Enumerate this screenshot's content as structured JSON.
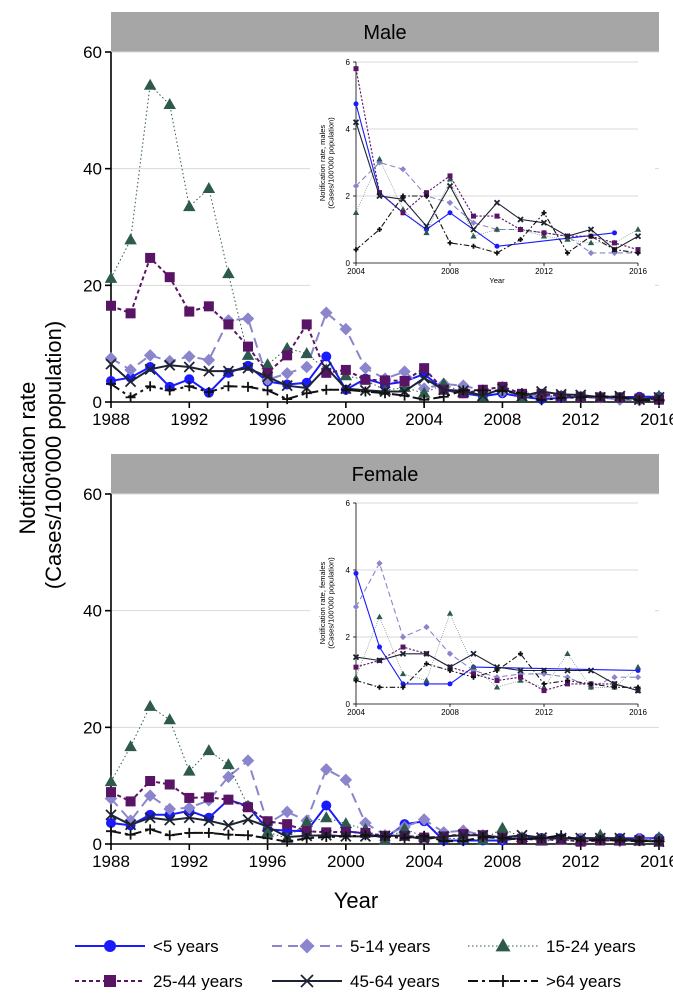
{
  "figure": {
    "ylabel_line1": "Notification rate",
    "ylabel_line2": "(Cases/100'000 population)",
    "xlabel": "Year"
  },
  "legend": [
    {
      "label": "<5 years",
      "series": "s1"
    },
    {
      "label": "5-14 years",
      "series": "s2"
    },
    {
      "label": "15-24 years",
      "series": "s3"
    },
    {
      "label": "25-44 years",
      "series": "s4"
    },
    {
      "label": "45-64 years",
      "series": "s5"
    },
    {
      "label": ">64 years",
      "series": "s6"
    }
  ],
  "colors": {
    "s1": "#1a1aff",
    "s2": "#8a85cc",
    "s3": "#2e5a4e",
    "s4": "#5a1466",
    "s5": "#1e2333",
    "s6": "#111111",
    "panel_header": "#a6a6a6",
    "grid": "#d9d9d9"
  },
  "chart_data": [
    {
      "type": "line",
      "title": "Male",
      "xlabel": "",
      "ylabel": "Notification rate\n(Cases/100'000 population)",
      "xlim": [
        1988,
        2016
      ],
      "ylim": [
        0,
        60
      ],
      "xticks": [
        1988,
        1992,
        1996,
        2000,
        2004,
        2008,
        2012,
        2016
      ],
      "yticks": [
        0,
        20,
        40,
        60
      ],
      "x": [
        1988,
        1989,
        1990,
        1991,
        1992,
        1993,
        1994,
        1995,
        1996,
        1997,
        1998,
        1999,
        2000,
        2001,
        2002,
        2003,
        2004,
        2005,
        2006,
        2007,
        2008,
        2009,
        2010,
        2011,
        2012,
        2013,
        2014,
        2015,
        2016
      ],
      "series": [
        {
          "name": "<5 years",
          "key": "s1",
          "values": [
            3.6,
            4.2,
            6.0,
            2.6,
            3.9,
            1.6,
            5.0,
            6.2,
            3.5,
            3.0,
            3.3,
            7.8,
            2.1,
            4.0,
            3.0,
            3.5,
            4.8,
            2.1,
            1.5,
            1.0,
            1.5,
            0.9,
            0.5,
            0.7,
            0.9,
            0.7,
            0.8,
            0.9,
            0.9
          ]
        },
        {
          "name": "5-14 years",
          "key": "s2",
          "values": [
            7.5,
            5.5,
            8.0,
            7.0,
            7.8,
            7.2,
            14.0,
            14.3,
            3.8,
            4.9,
            6.0,
            15.3,
            12.5,
            5.8,
            4.0,
            5.2,
            2.3,
            3.1,
            2.8,
            2.0,
            1.8,
            1.2,
            1.0,
            1.0,
            0.9,
            0.8,
            0.4,
            0.3,
            0.3
          ]
        },
        {
          "name": "15-24 years",
          "key": "s3",
          "values": [
            21.2,
            27.8,
            54.3,
            51.0,
            33.5,
            36.6,
            22.0,
            8.0,
            6.4,
            9.2,
            8.3,
            5.5,
            4.5,
            3.8,
            2.0,
            2.5,
            1.5,
            3.1,
            1.6,
            0.9,
            2.5,
            0.8,
            1.0,
            1.0,
            0.8,
            0.7,
            0.6,
            0.6,
            1.0
          ]
        },
        {
          "name": "25-44 years",
          "key": "s4",
          "values": [
            16.5,
            15.2,
            24.7,
            21.4,
            15.5,
            16.4,
            13.3,
            9.5,
            5.0,
            8.0,
            13.3,
            5.0,
            5.5,
            3.8,
            3.7,
            3.6,
            5.8,
            2.1,
            1.5,
            2.1,
            2.6,
            1.4,
            1.4,
            1.0,
            0.9,
            0.8,
            0.8,
            0.6,
            0.4
          ]
        },
        {
          "name": "45-64 years",
          "key": "s5",
          "values": [
            6.5,
            3.5,
            5.6,
            6.3,
            6.0,
            5.3,
            5.3,
            5.8,
            4.3,
            2.8,
            2.4,
            5.9,
            2.3,
            2.0,
            1.8,
            1.8,
            4.1,
            2.1,
            1.9,
            1.1,
            2.3,
            1.0,
            1.8,
            1.3,
            1.2,
            0.8,
            1.0,
            0.4,
            0.8
          ]
        },
        {
          "name": ">64 years",
          "key": "s6",
          "values": [
            3.1,
            0.8,
            2.7,
            2.0,
            2.7,
            1.7,
            2.7,
            2.6,
            2.0,
            0.5,
            1.5,
            2.1,
            2.1,
            1.8,
            1.5,
            1.1,
            0.4,
            0.9,
            2.0,
            2.0,
            1.9,
            1.5,
            0.3,
            0.7,
            0.8,
            1.0,
            0.8,
            0.3,
            0.3
          ]
        }
      ]
    },
    {
      "type": "line",
      "title": "",
      "xlabel": "Year",
      "ylabel": "Notification rate, males\n(Cases/100'000 population)",
      "xlim": [
        2004,
        2016
      ],
      "ylim": [
        0,
        6
      ],
      "xticks": [
        2004,
        2008,
        2012,
        2016
      ],
      "yticks": [
        0,
        2,
        4,
        6
      ],
      "x": [
        2004,
        2005,
        2006,
        2007,
        2008,
        2009,
        2010,
        2011,
        2012,
        2013,
        2014,
        2015,
        2016
      ],
      "series": [
        {
          "name": "<5 years",
          "key": "s1",
          "values": [
            4.75,
            2.1,
            1.5,
            1.0,
            1.5,
            null,
            0.5,
            null,
            null,
            null,
            null,
            0.9,
            null
          ]
        },
        {
          "name": "5-14 years",
          "key": "s2",
          "values": [
            2.3,
            3.0,
            2.8,
            2.0,
            1.8,
            1.2,
            1.0,
            1.0,
            0.9,
            0.8,
            0.3,
            0.3,
            0.3
          ]
        },
        {
          "name": "15-24 years",
          "key": "s3",
          "values": [
            1.5,
            3.1,
            1.6,
            0.9,
            2.5,
            0.8,
            1.0,
            1.0,
            0.8,
            0.7,
            0.6,
            0.6,
            1.0
          ]
        },
        {
          "name": "25-44 years",
          "key": "s4",
          "values": [
            5.8,
            2.1,
            1.5,
            2.1,
            2.6,
            1.4,
            1.4,
            1.0,
            0.9,
            0.8,
            0.8,
            0.6,
            0.4
          ]
        },
        {
          "name": "45-64 years",
          "key": "s5",
          "values": [
            4.2,
            2.0,
            1.9,
            1.1,
            2.3,
            1.0,
            1.8,
            1.3,
            1.2,
            0.8,
            1.0,
            0.4,
            0.8
          ]
        },
        {
          "name": ">64 years",
          "key": "s6",
          "values": [
            0.4,
            1.0,
            2.0,
            2.0,
            0.6,
            0.5,
            0.3,
            0.7,
            1.5,
            0.3,
            0.8,
            0.4,
            0.3
          ]
        }
      ]
    },
    {
      "type": "line",
      "title": "Female",
      "xlabel": "Year",
      "ylabel": "Notification rate\n(Cases/100'000 population)",
      "xlim": [
        1988,
        2016
      ],
      "ylim": [
        0,
        60
      ],
      "xticks": [
        1988,
        1992,
        1996,
        2000,
        2004,
        2008,
        2012,
        2016
      ],
      "yticks": [
        0,
        20,
        40,
        60
      ],
      "x": [
        1988,
        1989,
        1990,
        1991,
        1992,
        1993,
        1994,
        1995,
        1996,
        1997,
        1998,
        1999,
        2000,
        2001,
        2002,
        2003,
        2004,
        2005,
        2006,
        2007,
        2008,
        2009,
        2010,
        2011,
        2012,
        2013,
        2014,
        2015,
        2016
      ],
      "series": [
        {
          "name": "<5 years",
          "key": "s1",
          "values": [
            3.6,
            3.2,
            5.0,
            5.0,
            5.7,
            4.5,
            7.6,
            6.5,
            2.5,
            2.3,
            2.2,
            6.6,
            2.2,
            1.8,
            1.0,
            3.4,
            3.9,
            0.6,
            0.6,
            0.6,
            0.6,
            1.1,
            1.0,
            1.0,
            1.0,
            1.0,
            1.0,
            1.0,
            1.0
          ]
        },
        {
          "name": "5-14 years",
          "key": "s2",
          "values": [
            7.8,
            4.0,
            8.3,
            6.0,
            6.2,
            7.5,
            11.5,
            14.3,
            3.5,
            5.5,
            4.0,
            12.8,
            11.0,
            3.6,
            1.5,
            2.9,
            4.2,
            2.0,
            2.3,
            1.5,
            1.0,
            1.0,
            0.8,
            0.9,
            0.9,
            0.8,
            0.5,
            0.8,
            0.8
          ]
        },
        {
          "name": "15-24 years",
          "key": "s3",
          "values": [
            10.7,
            16.7,
            23.6,
            21.3,
            12.5,
            16.0,
            13.6,
            6.5,
            2.0,
            1.0,
            3.7,
            4.5,
            3.5,
            2.5,
            0.7,
            2.6,
            1.2,
            1.0,
            0.9,
            0.7,
            2.7,
            1.1,
            0.5,
            0.7,
            0.5,
            1.5,
            0.5,
            0.5,
            1.1
          ]
        },
        {
          "name": "25-44 years",
          "key": "s4",
          "values": [
            8.9,
            7.3,
            10.8,
            10.2,
            7.9,
            8.0,
            7.6,
            6.3,
            3.9,
            3.4,
            2.2,
            2.0,
            2.1,
            1.9,
            1.4,
            1.4,
            1.1,
            1.3,
            1.7,
            1.5,
            1.1,
            0.9,
            0.7,
            0.8,
            0.4,
            0.6,
            0.6,
            0.6,
            0.4
          ]
        },
        {
          "name": "45-64 years",
          "key": "s5",
          "values": [
            5.0,
            3.3,
            4.5,
            4.1,
            4.5,
            4.0,
            3.2,
            4.2,
            3.0,
            1.2,
            1.4,
            1.5,
            1.3,
            1.3,
            1.4,
            1.4,
            0.8,
            1.3,
            1.5,
            1.5,
            1.1,
            1.5,
            1.1,
            1.0,
            1.0,
            1.0,
            1.0,
            0.6,
            0.4
          ]
        },
        {
          "name": ">64 years",
          "key": "s6",
          "values": [
            2.2,
            1.6,
            2.5,
            1.5,
            1.9,
            1.9,
            1.6,
            1.5,
            1.0,
            0.4,
            1.0,
            1.2,
            1.3,
            1.5,
            1.3,
            1.0,
            1.4,
            0.5,
            0.5,
            1.2,
            1.0,
            0.8,
            1.0,
            1.5,
            0.6,
            0.7,
            0.6,
            0.5,
            0.5
          ]
        }
      ]
    },
    {
      "type": "line",
      "title": "",
      "xlabel": "",
      "ylabel": "Notification rate, females\n(Cases/100'000 population)",
      "xlim": [
        2004,
        2016
      ],
      "ylim": [
        0,
        6
      ],
      "xticks": [
        2004,
        2008,
        2012,
        2016
      ],
      "yticks": [
        0,
        2,
        4,
        6
      ],
      "x": [
        2004,
        2005,
        2006,
        2007,
        2008,
        2009,
        2010,
        2011,
        2012,
        2013,
        2014,
        2015,
        2016
      ],
      "series": [
        {
          "name": "<5 years",
          "key": "s1",
          "values": [
            3.9,
            1.7,
            0.6,
            0.6,
            0.6,
            1.1,
            null,
            null,
            null,
            null,
            null,
            null,
            1.0
          ]
        },
        {
          "name": "5-14 years",
          "key": "s2",
          "values": [
            2.9,
            4.2,
            2.0,
            2.3,
            1.5,
            1.0,
            0.8,
            0.9,
            0.9,
            0.8,
            0.5,
            0.8,
            0.8
          ]
        },
        {
          "name": "15-24 years",
          "key": "s3",
          "values": [
            0.8,
            2.6,
            0.9,
            0.7,
            2.7,
            1.1,
            0.5,
            0.7,
            0.5,
            1.5,
            0.5,
            0.5,
            1.1
          ]
        },
        {
          "name": "25-44 years",
          "key": "s4",
          "values": [
            1.1,
            1.3,
            1.7,
            1.5,
            1.1,
            0.9,
            0.7,
            0.8,
            0.4,
            0.6,
            0.6,
            0.6,
            0.4
          ]
        },
        {
          "name": "45-64 years",
          "key": "s5",
          "values": [
            1.4,
            1.3,
            1.5,
            1.5,
            1.1,
            1.5,
            1.1,
            1.0,
            1.0,
            1.0,
            1.0,
            0.6,
            0.4
          ]
        },
        {
          "name": ">64 years",
          "key": "s6",
          "values": [
            0.7,
            0.5,
            0.5,
            1.2,
            1.0,
            0.8,
            1.0,
            1.5,
            0.6,
            0.7,
            0.6,
            0.5,
            0.5
          ]
        }
      ]
    }
  ]
}
